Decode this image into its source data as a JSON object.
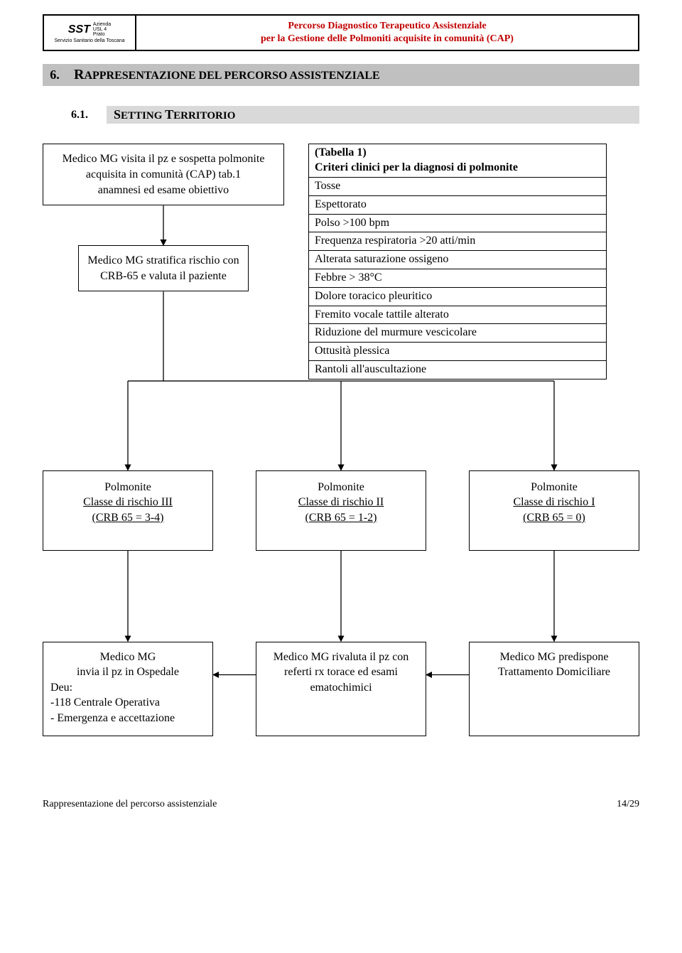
{
  "header": {
    "logo_sst": "SST",
    "logo_side": "Azienda\nUSL 4\nPrato",
    "logo_sub": "Servizio Sanitario della Toscana",
    "title_line1": "Percorso Diagnostico Terapeutico Assistenziale",
    "title_line2": "per la Gestione delle Polmoniti acquisite in comunità (CAP)"
  },
  "section6": {
    "num": "6.",
    "title_r": "R",
    "title_rest": "APPRESENTAZIONE DEL PERCORSO ASSISTENZIALE"
  },
  "section61": {
    "num": "6.1.",
    "title_s": "S",
    "title_mid": "ETTING ",
    "title_t": "T",
    "title_rest": "ERRITORIO"
  },
  "box_pz": "Medico MG visita il pz e sospetta polmonite acquisita in comunità (CAP) tab.1\nanamnesi ed esame obiettivo",
  "criteria": {
    "header": "(Tabella 1)\nCriteri clinici per la diagnosi di polmonite",
    "rows": [
      "Tosse",
      "Espettorato",
      "Polso >100 bpm",
      "Frequenza respiratoria >20 atti/min",
      "Alterata saturazione ossigeno",
      "Febbre > 38°C",
      "Dolore toracico pleuritico",
      "Fremito vocale tattile alterato",
      "Riduzione del murmure vescicolare",
      "Ottusità plessica",
      "Rantoli all'auscultazione"
    ]
  },
  "box_strat": "Medico MG stratifica rischio con CRB-65 e valuta il paziente",
  "risk": [
    {
      "line1": "Polmonite",
      "line2": "Classe di rischio III",
      "line3": "(CRB 65 = 3-4)"
    },
    {
      "line1": "Polmonite",
      "line2": "Classe di rischio II",
      "line3": "(CRB 65 = 1-2)"
    },
    {
      "line1": "Polmonite",
      "line2": "Classe di rischio I",
      "line3": "(CRB 65 = 0)"
    }
  ],
  "actions": {
    "osp_l1": "Medico MG",
    "osp_l2": "invia il pz in Ospedale",
    "osp_l3": "Deu:",
    "osp_l4": "-118 Centrale Operativa",
    "osp_l5": "- Emergenza e accettazione",
    "rival": "Medico MG rivaluta il pz con referti  rx torace ed esami ematochimici",
    "dom": "Medico MG predispone Trattamento Domiciliare"
  },
  "footer": {
    "left": "Rappresentazione del percorso assistenziale",
    "right": "14/29"
  },
  "colors": {
    "title": "#c00000",
    "sec_bg": "#c0c0c0",
    "sub_bg": "#d9d9d9"
  }
}
